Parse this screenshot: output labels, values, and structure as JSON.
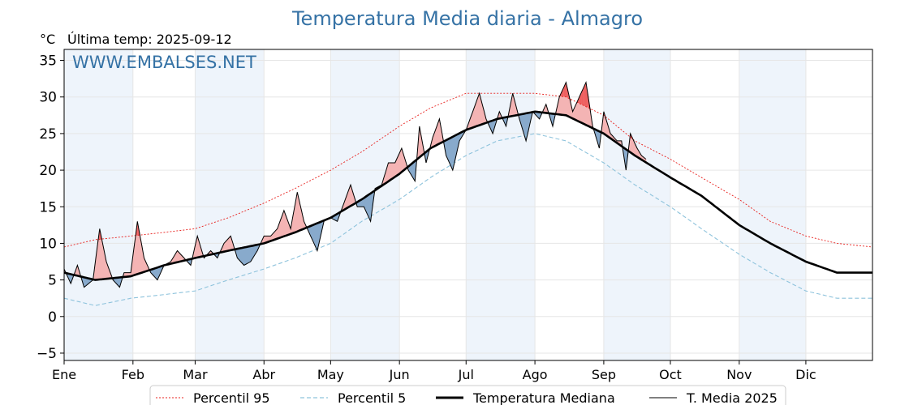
{
  "chart_data": {
    "type": "line",
    "title": "Temperatura Media diaria - Almagro",
    "unit": "°C",
    "last_temp": "Última temp: 2025-09-12",
    "watermark": "WWW.EMBALSES.NET",
    "ylim": [
      -6,
      36.5
    ],
    "yticks": [
      -5,
      0,
      5,
      10,
      15,
      20,
      25,
      30,
      35
    ],
    "grid": true,
    "legend_position": "bottom",
    "months": [
      "Ene",
      "Feb",
      "Mar",
      "Abr",
      "May",
      "Jun",
      "Jul",
      "Ago",
      "Sep",
      "Oct",
      "Nov",
      "Dic"
    ],
    "series": [
      {
        "name": "Percentil 95",
        "color": "#e8201d",
        "style": "dotted",
        "anchors": [
          [
            1,
            9.5
          ],
          [
            15,
            10.5
          ],
          [
            31,
            11
          ],
          [
            46,
            11.5
          ],
          [
            60,
            12
          ],
          [
            75,
            13.5
          ],
          [
            91,
            15.5
          ],
          [
            105,
            17.5
          ],
          [
            121,
            20
          ],
          [
            135,
            22.5
          ],
          [
            152,
            26
          ],
          [
            166,
            28.5
          ],
          [
            182,
            30.5
          ],
          [
            196,
            30.5
          ],
          [
            213,
            30.5
          ],
          [
            227,
            30
          ],
          [
            244,
            27.5
          ],
          [
            258,
            24
          ],
          [
            274,
            21.5
          ],
          [
            288,
            19
          ],
          [
            305,
            16
          ],
          [
            319,
            13
          ],
          [
            335,
            11
          ],
          [
            349,
            10
          ],
          [
            365,
            9.5
          ]
        ]
      },
      {
        "name": "Percentil 5",
        "color": "#8ec3dc",
        "style": "dashed",
        "anchors": [
          [
            1,
            2.5
          ],
          [
            15,
            1.5
          ],
          [
            31,
            2.5
          ],
          [
            46,
            3
          ],
          [
            60,
            3.5
          ],
          [
            75,
            5
          ],
          [
            91,
            6.5
          ],
          [
            105,
            8
          ],
          [
            121,
            10
          ],
          [
            135,
            13
          ],
          [
            152,
            16
          ],
          [
            166,
            19
          ],
          [
            182,
            22
          ],
          [
            196,
            24
          ],
          [
            213,
            25
          ],
          [
            227,
            24
          ],
          [
            244,
            21
          ],
          [
            258,
            18
          ],
          [
            274,
            15
          ],
          [
            288,
            12
          ],
          [
            305,
            8.5
          ],
          [
            319,
            6
          ],
          [
            335,
            3.5
          ],
          [
            349,
            2.5
          ],
          [
            365,
            2.5
          ]
        ]
      },
      {
        "name": "Temperatura Mediana",
        "color": "#000000",
        "style": "bold",
        "anchors": [
          [
            1,
            6
          ],
          [
            15,
            5
          ],
          [
            31,
            5.5
          ],
          [
            46,
            7
          ],
          [
            60,
            8
          ],
          [
            75,
            9
          ],
          [
            91,
            10
          ],
          [
            105,
            11.5
          ],
          [
            121,
            13.5
          ],
          [
            135,
            16
          ],
          [
            152,
            19.5
          ],
          [
            166,
            23
          ],
          [
            182,
            25.5
          ],
          [
            196,
            27
          ],
          [
            213,
            28
          ],
          [
            227,
            27.5
          ],
          [
            244,
            25
          ],
          [
            258,
            22
          ],
          [
            274,
            19
          ],
          [
            288,
            16.5
          ],
          [
            305,
            12.5
          ],
          [
            319,
            10
          ],
          [
            335,
            7.5
          ],
          [
            349,
            6
          ],
          [
            365,
            6
          ]
        ]
      },
      {
        "name": "T. Media 2025",
        "color": "#000000",
        "style": "thin",
        "anchors": [
          [
            1,
            6.5
          ],
          [
            4,
            4.5
          ],
          [
            7,
            7
          ],
          [
            10,
            4
          ],
          [
            14,
            5
          ],
          [
            17,
            12
          ],
          [
            20,
            7.5
          ],
          [
            23,
            5
          ],
          [
            26,
            4
          ],
          [
            28,
            6
          ],
          [
            31,
            6
          ],
          [
            34,
            13
          ],
          [
            37,
            8
          ],
          [
            40,
            6
          ],
          [
            43,
            5
          ],
          [
            46,
            7
          ],
          [
            49,
            7.5
          ],
          [
            52,
            9
          ],
          [
            55,
            8
          ],
          [
            58,
            7
          ],
          [
            61,
            11
          ],
          [
            64,
            8
          ],
          [
            67,
            9
          ],
          [
            70,
            8
          ],
          [
            73,
            10
          ],
          [
            76,
            11
          ],
          [
            79,
            8
          ],
          [
            82,
            7
          ],
          [
            85,
            7.5
          ],
          [
            88,
            9
          ],
          [
            91,
            11
          ],
          [
            94,
            11
          ],
          [
            97,
            12
          ],
          [
            100,
            14.5
          ],
          [
            103,
            12
          ],
          [
            106,
            17
          ],
          [
            109,
            13
          ],
          [
            112,
            11
          ],
          [
            115,
            9
          ],
          [
            118,
            13
          ],
          [
            121,
            13.5
          ],
          [
            124,
            13
          ],
          [
            127,
            15.5
          ],
          [
            130,
            18
          ],
          [
            133,
            15
          ],
          [
            136,
            15
          ],
          [
            139,
            13
          ],
          [
            141,
            17.5
          ],
          [
            144,
            18
          ],
          [
            147,
            21
          ],
          [
            150,
            21
          ],
          [
            153,
            23
          ],
          [
            156,
            20
          ],
          [
            159,
            18.5
          ],
          [
            161,
            26
          ],
          [
            164,
            21
          ],
          [
            167,
            24.5
          ],
          [
            170,
            27
          ],
          [
            173,
            22
          ],
          [
            176,
            20
          ],
          [
            179,
            24
          ],
          [
            182,
            25.5
          ],
          [
            185,
            28
          ],
          [
            188,
            30.5
          ],
          [
            191,
            27
          ],
          [
            194,
            25
          ],
          [
            197,
            28
          ],
          [
            200,
            26
          ],
          [
            203,
            30.5
          ],
          [
            206,
            27
          ],
          [
            209,
            24
          ],
          [
            212,
            28
          ],
          [
            215,
            27
          ],
          [
            218,
            29
          ],
          [
            221,
            26
          ],
          [
            224,
            30
          ],
          [
            227,
            32
          ],
          [
            230,
            28
          ],
          [
            233,
            30
          ],
          [
            236,
            32
          ],
          [
            239,
            26
          ],
          [
            242,
            23
          ],
          [
            244,
            28
          ],
          [
            247,
            25
          ],
          [
            250,
            24
          ],
          [
            252,
            24
          ],
          [
            254,
            20
          ],
          [
            256,
            25
          ],
          [
            259,
            23
          ],
          [
            261,
            22
          ],
          [
            263,
            21.5
          ]
        ]
      }
    ]
  },
  "legend": {
    "p95": "Percentil 95",
    "p5": "Percentil 5",
    "median": "Temperatura Mediana",
    "current": "T. Media 2025"
  },
  "colors": {
    "title": "#3572a5",
    "above_median": "#f4b4b4",
    "above_p95": "#ee6060",
    "below_median": "#88aacc",
    "month_shade": "#eef4fb",
    "grid": "#e6e6e6"
  }
}
